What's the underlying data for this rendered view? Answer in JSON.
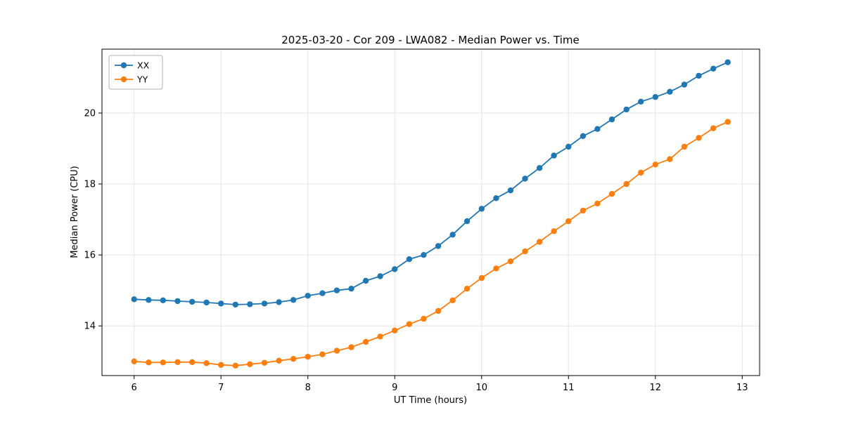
{
  "figure": {
    "background": "#ffffff",
    "plot_border_color": "#000000",
    "grid_color": "#e6e6e6"
  },
  "chart_data": {
    "type": "line",
    "title": "2025-03-20 - Cor 209 - LWA082 - Median Power vs. Time",
    "xlabel": "UT Time (hours)",
    "ylabel": "Median Power (CPU)",
    "xlim": [
      5.63,
      13.2
    ],
    "ylim": [
      12.6,
      21.8
    ],
    "x_ticks": [
      6,
      7,
      8,
      9,
      10,
      11,
      12,
      13
    ],
    "y_ticks": [
      14,
      16,
      18,
      20
    ],
    "grid": true,
    "legend_position": "upper left",
    "x": [
      6.0,
      6.167,
      6.333,
      6.5,
      6.667,
      6.833,
      7.0,
      7.167,
      7.333,
      7.5,
      7.667,
      7.833,
      8.0,
      8.167,
      8.333,
      8.5,
      8.667,
      8.833,
      9.0,
      9.167,
      9.333,
      9.5,
      9.667,
      9.833,
      10.0,
      10.167,
      10.333,
      10.5,
      10.667,
      10.833,
      11.0,
      11.167,
      11.333,
      11.5,
      11.667,
      11.833,
      12.0,
      12.167,
      12.333,
      12.5,
      12.667,
      12.833
    ],
    "series": [
      {
        "name": "XX",
        "color": "#1f77b4",
        "values": [
          14.75,
          14.73,
          14.72,
          14.7,
          14.68,
          14.66,
          14.63,
          14.6,
          14.61,
          14.63,
          14.67,
          14.73,
          14.85,
          14.92,
          15.0,
          15.05,
          15.27,
          15.4,
          15.6,
          15.88,
          16.0,
          16.25,
          16.57,
          16.95,
          17.3,
          17.6,
          17.82,
          18.15,
          18.45,
          18.8,
          19.05,
          19.35,
          19.55,
          19.82,
          20.1,
          20.32,
          20.45,
          20.6,
          20.8,
          21.05,
          21.25,
          21.43
        ]
      },
      {
        "name": "YY",
        "color": "#ff7f0e",
        "values": [
          13.0,
          12.97,
          12.97,
          12.98,
          12.98,
          12.95,
          12.9,
          12.88,
          12.92,
          12.96,
          13.02,
          13.07,
          13.13,
          13.2,
          13.3,
          13.4,
          13.55,
          13.7,
          13.87,
          14.05,
          14.2,
          14.42,
          14.72,
          15.05,
          15.35,
          15.62,
          15.82,
          16.1,
          16.37,
          16.67,
          16.95,
          17.25,
          17.45,
          17.72,
          18.0,
          18.32,
          18.55,
          18.7,
          19.05,
          19.3,
          19.57,
          19.75
        ]
      }
    ]
  }
}
